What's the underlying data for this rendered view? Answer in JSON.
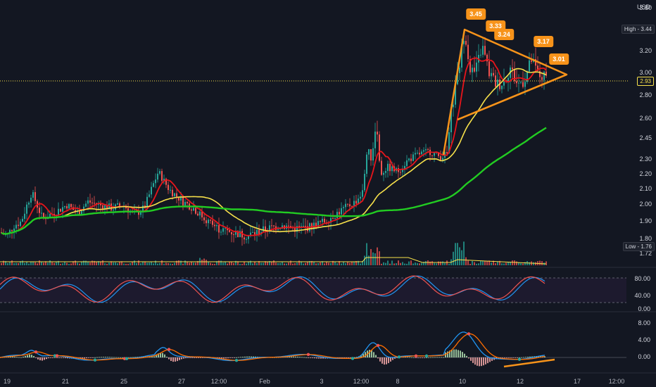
{
  "chart_data": {
    "type": "candlestick",
    "currency_label": "USD",
    "price_axis": {
      "ticks": [
        "3.80",
        "3.40",
        "3.20",
        "3.00",
        "2.80",
        "2.60",
        "2.45",
        "2.30",
        "2.20",
        "2.10",
        "2.00",
        "1.90",
        "1.80",
        "1.72"
      ],
      "current_price": "2.93",
      "high_label": "High",
      "high_value": "3.44",
      "low_label": "Low",
      "low_value": "1.76"
    },
    "x_axis": {
      "ticks": [
        "19",
        "21",
        "25",
        "27",
        "12:00",
        "Feb",
        "3",
        "12:00",
        "8",
        "10",
        "12",
        "17",
        "12:00"
      ]
    },
    "annotations": [
      "3.45",
      "3.33",
      "3.24",
      "3.17",
      "3.01"
    ],
    "stoch_axis": {
      "ticks": [
        "80.00",
        "40.00",
        "0.00"
      ]
    },
    "macd_axis": {
      "ticks": [
        "8.00",
        "4.00",
        "0.00"
      ]
    },
    "colors": {
      "up": "#26a69a",
      "down": "#ef5350",
      "ma_fast": "#e8151b",
      "ma_mid": "#f7e14b",
      "ma_slow": "#22cc22",
      "pattern": "#f7931a",
      "background": "#131722"
    }
  }
}
